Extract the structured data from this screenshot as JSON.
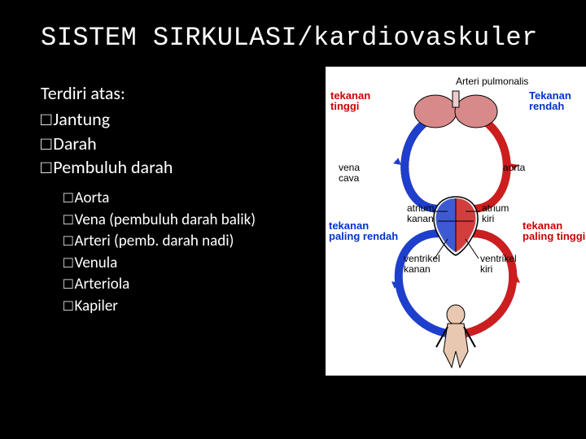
{
  "slide": {
    "title": "SISTEM SIRKULASI/kardiovaskuler",
    "intro": "Terdiri atas:",
    "main_items": [
      {
        "bullet": "□",
        "label": "Jantung"
      },
      {
        "bullet": "□",
        "label": "Darah"
      },
      {
        "bullet": "□",
        "label": "Pembuluh darah"
      }
    ],
    "sub_items": [
      {
        "bullet": "□",
        "label": "Aorta"
      },
      {
        "bullet": "□",
        "label": "Vena (pembuluh darah balik)"
      },
      {
        "bullet": "□",
        "label": "Arteri (pemb. darah nadi)"
      },
      {
        "bullet": "□",
        "label": "Venula"
      },
      {
        "bullet": "□",
        "label": "Arteriola"
      },
      {
        "bullet": "□",
        "label": "Kapiler"
      }
    ]
  },
  "diagram": {
    "background": "#ffffff",
    "colors": {
      "artery": "#cc1e1e",
      "vein": "#1e3fcc",
      "lung": "#d88a8a",
      "body": "#e8c8b0",
      "heart_left": "#cc1e1e",
      "heart_right": "#1e3fcc",
      "outline": "#000000"
    },
    "labels": {
      "tekanan_tinggi": "tekanan\ntinggi",
      "tekanan_rendah": "Tekanan\nrendah",
      "arteri_pulmonalis": "Arteri pulmonalis",
      "vena_cava": "vena\ncava",
      "aorta": "aorta",
      "tekanan_paling_rendah": "tekanan\npaling rendah",
      "tekanan_paling_tinggi": "tekanan\npaling tinggi",
      "atrium_kanan": "atrium\nkanan",
      "atrium_kiri": "atrium\nkiri",
      "ventrikel_kanan": "ventrikel\nkanan",
      "ventrikel_kiri": "ventrikel\nkiri"
    },
    "line_width": 2,
    "loop_stroke_width": 10
  }
}
